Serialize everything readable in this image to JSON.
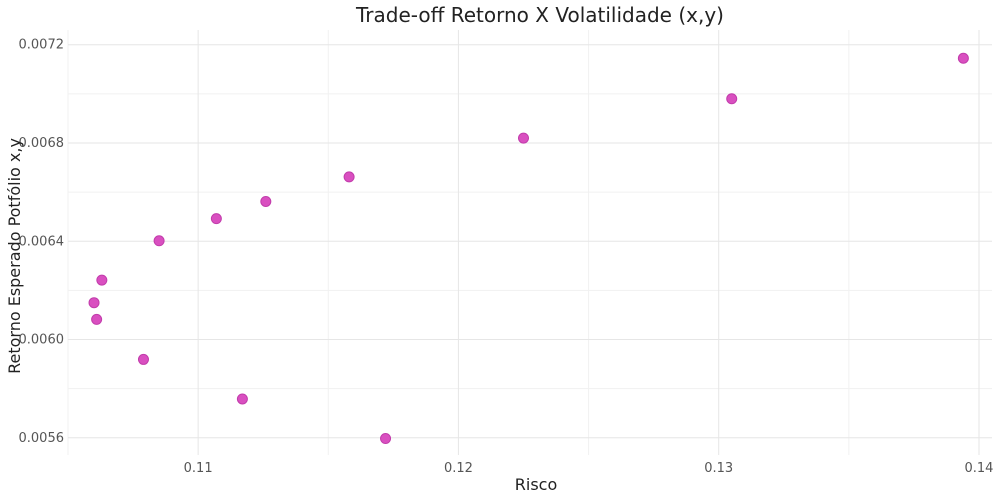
{
  "chart_data": {
    "type": "scatter",
    "title": "Trade-off Retorno X Volatilidade (x,y)",
    "xlabel": "Risco",
    "ylabel": "Retorno Esperado Potfólio x,y",
    "xlim": [
      0.105,
      0.1405
    ],
    "ylim": [
      0.00553,
      0.00726
    ],
    "x_ticks": [
      0.11,
      0.12,
      0.13,
      0.14
    ],
    "x_tick_labels": [
      "0.11",
      "0.12",
      "0.13",
      "0.14"
    ],
    "y_ticks": [
      0.0056,
      0.006,
      0.0064,
      0.0068,
      0.0072
    ],
    "y_tick_labels": [
      "0.0056",
      "0.0060",
      "0.0064",
      "0.0068",
      "0.0072"
    ],
    "grid": true,
    "legend": "none",
    "marker_color": "#d94fc0",
    "points": [
      {
        "x": 0.106,
        "y": 0.00615
      },
      {
        "x": 0.1061,
        "y": 0.006082
      },
      {
        "x": 0.1063,
        "y": 0.006242
      },
      {
        "x": 0.1079,
        "y": 0.005919
      },
      {
        "x": 0.1085,
        "y": 0.006402
      },
      {
        "x": 0.1107,
        "y": 0.006492
      },
      {
        "x": 0.1117,
        "y": 0.005758
      },
      {
        "x": 0.1126,
        "y": 0.006562
      },
      {
        "x": 0.1158,
        "y": 0.006662
      },
      {
        "x": 0.1172,
        "y": 0.005597
      },
      {
        "x": 0.1225,
        "y": 0.00682
      },
      {
        "x": 0.1305,
        "y": 0.00698
      },
      {
        "x": 0.1394,
        "y": 0.007145
      }
    ]
  }
}
